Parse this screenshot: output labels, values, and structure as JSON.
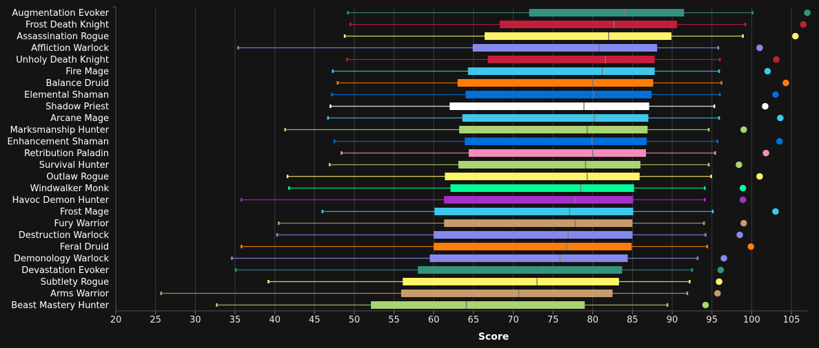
{
  "chart_data": {
    "type": "box",
    "title": "",
    "xlabel": "Score",
    "ylabel": "",
    "xlim": [
      20,
      107
    ],
    "xticks": [
      20,
      25,
      30,
      35,
      40,
      45,
      50,
      55,
      60,
      65,
      70,
      75,
      80,
      85,
      90,
      95,
      100,
      105
    ],
    "grid": true,
    "series": [
      {
        "name": "Augmentation Evoker",
        "color": "#33937F",
        "min": 49.2,
        "q1": 72.0,
        "median": 84.0,
        "q3": 91.5,
        "max": 100.1,
        "point": 107.0
      },
      {
        "name": "Frost Death Knight",
        "color": "#C41E3A",
        "min": 49.5,
        "q1": 68.3,
        "median": 82.7,
        "q3": 90.6,
        "max": 99.2,
        "point": 106.5
      },
      {
        "name": "Assassination Rogue",
        "color": "#FFF468",
        "min": 48.8,
        "q1": 66.4,
        "median": 82.0,
        "q3": 89.9,
        "max": 98.9,
        "point": 105.5
      },
      {
        "name": "Affliction Warlock",
        "color": "#8788EE",
        "min": 35.4,
        "q1": 64.9,
        "median": 80.8,
        "q3": 88.1,
        "max": 95.8,
        "point": 101.0
      },
      {
        "name": "Unholy Death Knight",
        "color": "#C41E3A",
        "min": 49.1,
        "q1": 66.8,
        "median": 81.6,
        "q3": 87.8,
        "max": 96.0,
        "point": 103.1
      },
      {
        "name": "Fire Mage",
        "color": "#3FC7EB",
        "min": 47.3,
        "q1": 64.3,
        "median": 81.2,
        "q3": 87.8,
        "max": 95.9,
        "point": 102.0
      },
      {
        "name": "Balance Druid",
        "color": "#FF7C0A",
        "min": 47.9,
        "q1": 63.0,
        "median": 80.0,
        "q3": 87.6,
        "max": 96.2,
        "point": 104.3
      },
      {
        "name": "Elemental Shaman",
        "color": "#0070DD",
        "min": 47.2,
        "q1": 64.0,
        "median": 80.1,
        "q3": 87.4,
        "max": 96.0,
        "point": 103.0
      },
      {
        "name": "Shadow Priest",
        "color": "#FFFFFF",
        "min": 47.0,
        "q1": 62.0,
        "median": 78.9,
        "q3": 87.1,
        "max": 95.3,
        "point": 101.7
      },
      {
        "name": "Arcane Mage",
        "color": "#3FC7EB",
        "min": 46.7,
        "q1": 63.6,
        "median": 80.2,
        "q3": 87.0,
        "max": 95.9,
        "point": 103.6
      },
      {
        "name": "Marksmanship Hunter",
        "color": "#AAD372",
        "min": 41.3,
        "q1": 63.2,
        "median": 79.3,
        "q3": 86.9,
        "max": 94.6,
        "point": 99.0
      },
      {
        "name": "Enhancement Shaman",
        "color": "#0070DD",
        "min": 47.5,
        "q1": 63.9,
        "median": 79.9,
        "q3": 86.8,
        "max": 95.7,
        "point": 103.5
      },
      {
        "name": "Retribution Paladin",
        "color": "#F48CBA",
        "min": 48.4,
        "q1": 64.4,
        "median": 80.0,
        "q3": 86.7,
        "max": 95.4,
        "point": 101.8
      },
      {
        "name": "Survival Hunter",
        "color": "#AAD372",
        "min": 46.9,
        "q1": 63.1,
        "median": 79.1,
        "q3": 86.0,
        "max": 94.6,
        "point": 98.4
      },
      {
        "name": "Outlaw Rogue",
        "color": "#FFF468",
        "min": 41.6,
        "q1": 61.4,
        "median": 79.3,
        "q3": 85.9,
        "max": 94.9,
        "point": 101.0
      },
      {
        "name": "Windwalker Monk",
        "color": "#00FF98",
        "min": 41.8,
        "q1": 62.1,
        "median": 78.5,
        "q3": 85.2,
        "max": 94.1,
        "point": 98.9
      },
      {
        "name": "Havoc Demon Hunter",
        "color": "#A330C9",
        "min": 35.8,
        "q1": 61.3,
        "median": 77.8,
        "q3": 85.1,
        "max": 94.1,
        "point": 98.9
      },
      {
        "name": "Frost Mage",
        "color": "#3FC7EB",
        "min": 46.0,
        "q1": 60.1,
        "median": 77.1,
        "q3": 85.1,
        "max": 95.1,
        "point": 103.0
      },
      {
        "name": "Fury Warrior",
        "color": "#C69B6D",
        "min": 40.5,
        "q1": 61.3,
        "median": 77.8,
        "q3": 85.0,
        "max": 94.0,
        "point": 99.0
      },
      {
        "name": "Destruction Warlock",
        "color": "#8788EE",
        "min": 40.3,
        "q1": 60.0,
        "median": 76.9,
        "q3": 85.0,
        "max": 94.2,
        "point": 98.5
      },
      {
        "name": "Feral Druid",
        "color": "#FF7C0A",
        "min": 35.8,
        "q1": 60.0,
        "median": 76.7,
        "q3": 84.9,
        "max": 94.4,
        "point": 99.9
      },
      {
        "name": "Demonology Warlock",
        "color": "#8788EE",
        "min": 34.6,
        "q1": 59.5,
        "median": 75.9,
        "q3": 84.4,
        "max": 93.2,
        "point": 96.5
      },
      {
        "name": "Devastation Evoker",
        "color": "#33937F",
        "min": 35.1,
        "q1": 58.0,
        "median": 73.8,
        "q3": 83.7,
        "max": 92.5,
        "point": 96.1
      },
      {
        "name": "Subtlety Rogue",
        "color": "#FFF468",
        "min": 39.2,
        "q1": 56.1,
        "median": 73.0,
        "q3": 83.3,
        "max": 92.2,
        "point": 95.9
      },
      {
        "name": "Arms Warrior",
        "color": "#C69B6D",
        "min": 25.7,
        "q1": 55.9,
        "median": 70.7,
        "q3": 82.5,
        "max": 91.9,
        "point": 95.7
      },
      {
        "name": "Beast Mastery Hunter",
        "color": "#AAD372",
        "min": 32.7,
        "q1": 52.1,
        "median": 64.1,
        "q3": 79.0,
        "max": 89.4,
        "point": 94.2
      }
    ]
  }
}
